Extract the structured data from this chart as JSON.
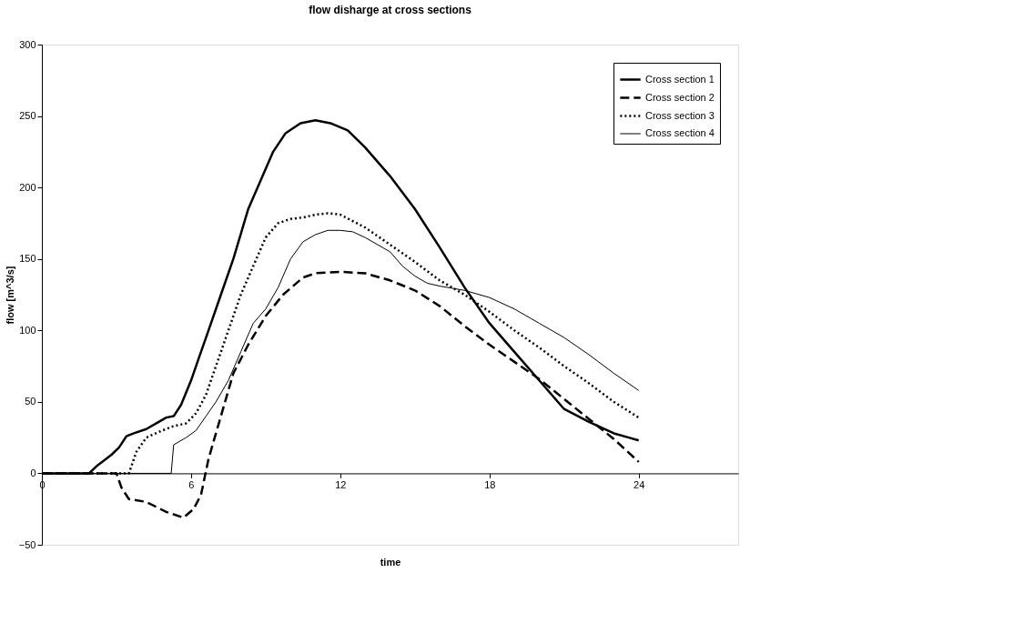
{
  "chart_data": {
    "type": "line",
    "title": "flow disharge at cross sections",
    "xlabel": "time",
    "ylabel": "flow [m^3/s]",
    "xlim": [
      0,
      28
    ],
    "xticks": [
      0,
      6,
      12,
      18,
      24
    ],
    "ylim": [
      -50,
      300
    ],
    "yticks": [
      -50,
      0,
      50,
      100,
      150,
      200,
      250,
      300
    ],
    "grid": false,
    "legend": "top right",
    "series": [
      {
        "name": "Cross section 1",
        "color": "#000000",
        "line_style": "solid",
        "x": [
          0,
          1,
          1.9,
          2.2,
          2.8,
          3.1,
          3.4,
          3.7,
          4.2,
          4.7,
          5.0,
          5.3,
          5.6,
          6.0,
          6.3,
          6.7,
          7.2,
          7.7,
          8.3,
          8.8,
          9.3,
          9.8,
          10.4,
          11,
          11.6,
          12.3,
          13,
          14,
          15,
          16,
          17,
          18,
          19,
          20,
          21,
          22,
          23,
          23.6,
          24
        ],
        "values": [
          0,
          0,
          0,
          5,
          13,
          18,
          26,
          28,
          31,
          36,
          39,
          40,
          48,
          65,
          80,
          100,
          125,
          150,
          185,
          205,
          225,
          238,
          245,
          247,
          245,
          240,
          228,
          208,
          185,
          158,
          130,
          105,
          85,
          65,
          45,
          36,
          28,
          25,
          23
        ]
      },
      {
        "name": "Cross section 2",
        "color": "#000000",
        "line_style": "dashed",
        "x": [
          0,
          3,
          3.2,
          3.5,
          4.2,
          5,
          5.7,
          6.1,
          6.4,
          6.7,
          7.2,
          7.7,
          8.3,
          9,
          9.7,
          10.5,
          11,
          12,
          13,
          14,
          15,
          16,
          17,
          18,
          19,
          20,
          21,
          22,
          23,
          24
        ],
        "values": [
          0,
          0,
          -10,
          -18,
          -20,
          -27,
          -31,
          -25,
          -15,
          10,
          40,
          70,
          90,
          110,
          125,
          137,
          140,
          141,
          140,
          135,
          128,
          117,
          103,
          90,
          78,
          66,
          52,
          38,
          24,
          8
        ]
      },
      {
        "name": "Cross section 3",
        "color": "#000000",
        "line_style": "dotted",
        "x": [
          0,
          3.5,
          3.8,
          4.2,
          4.7,
          5.3,
          5.8,
          6.2,
          6.6,
          7,
          7.5,
          8,
          8.5,
          9,
          9.5,
          10,
          10.5,
          11,
          11.5,
          12,
          13,
          14,
          15,
          16,
          17,
          18,
          19,
          20,
          21,
          22,
          23,
          24
        ],
        "values": [
          0,
          0,
          15,
          25,
          29,
          33,
          35,
          42,
          55,
          75,
          100,
          125,
          145,
          165,
          175,
          178,
          179,
          181,
          182,
          181,
          172,
          160,
          148,
          135,
          125,
          113,
          100,
          88,
          75,
          63,
          50,
          39
        ]
      },
      {
        "name": "Cross section 4",
        "color": "#000000",
        "line_style": "solid",
        "x": [
          0,
          5.2,
          5.3,
          5.8,
          6.2,
          6.6,
          7,
          7.5,
          8,
          8.5,
          9,
          9.5,
          10,
          10.5,
          11,
          11.5,
          12,
          12.5,
          13,
          14,
          14.5,
          15,
          15.5,
          16,
          17,
          18,
          19,
          20,
          21,
          22,
          23,
          24
        ],
        "values": [
          0,
          0,
          20,
          25,
          30,
          40,
          50,
          65,
          85,
          105,
          115,
          130,
          150,
          162,
          167,
          170,
          170,
          169,
          165,
          155,
          145,
          138,
          133,
          131,
          128,
          123,
          115,
          105,
          95,
          83,
          70,
          58
        ]
      }
    ]
  }
}
